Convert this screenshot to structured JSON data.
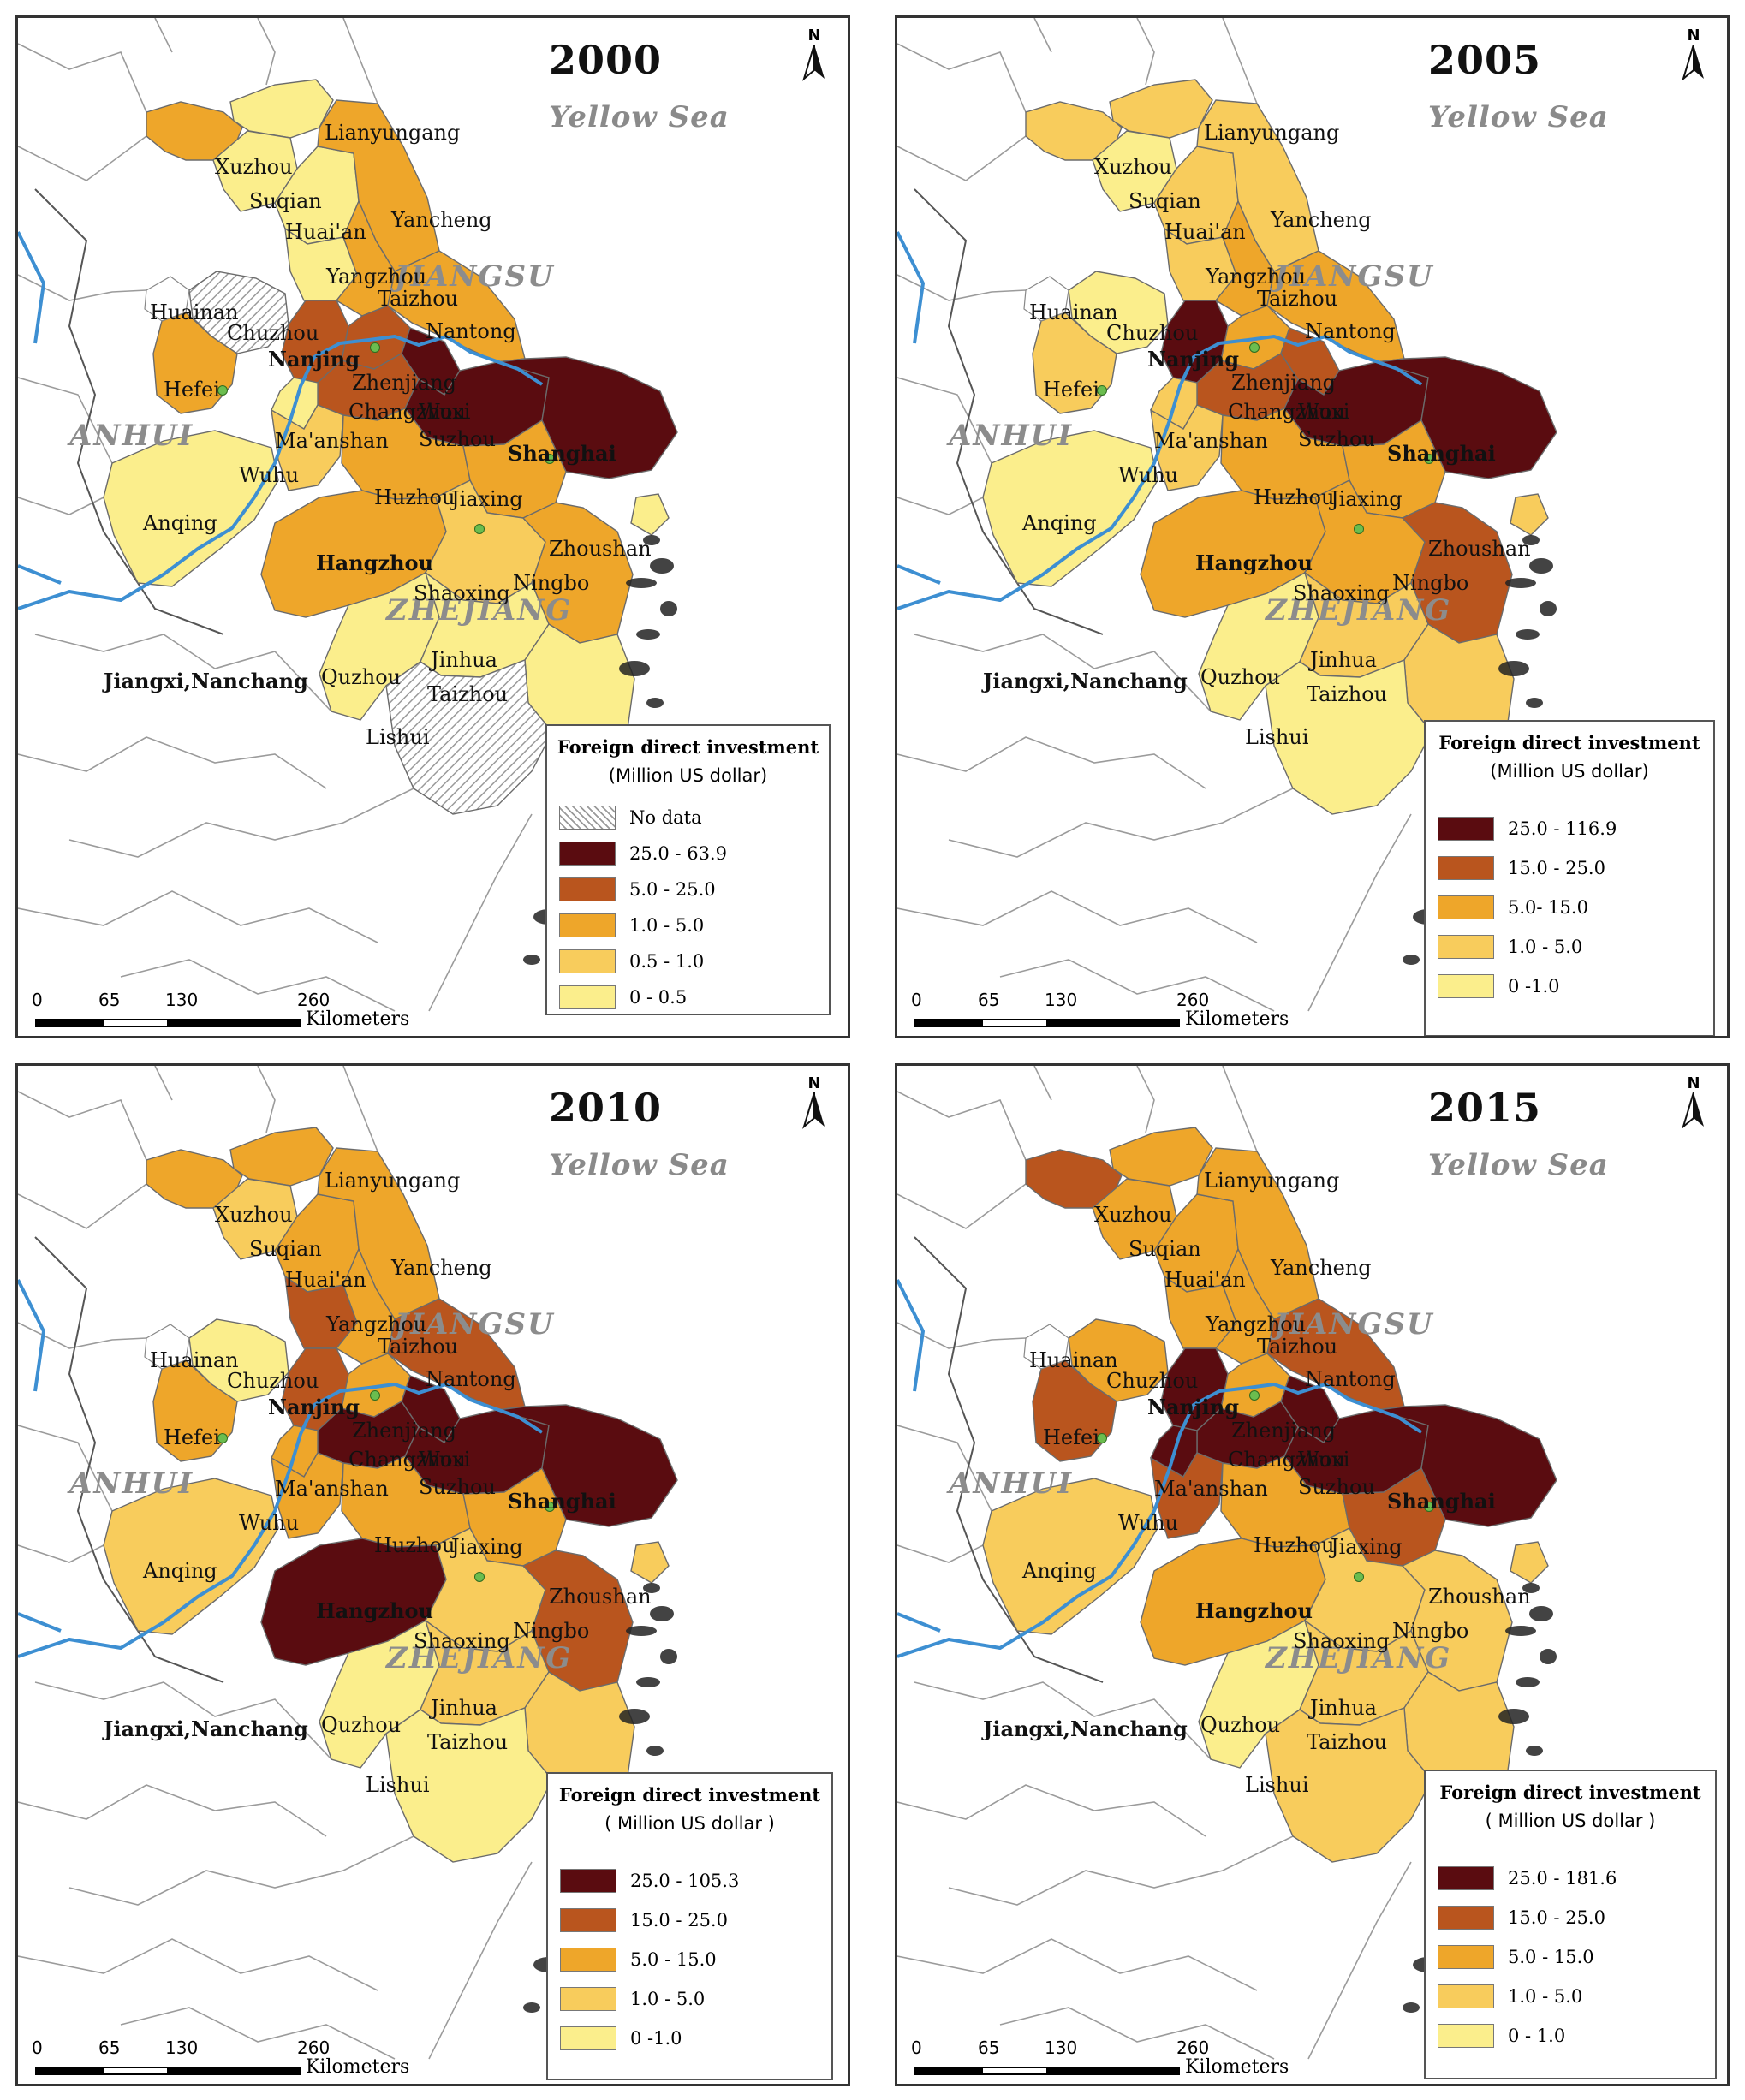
{
  "map_common": {
    "sea_label": "Yellow Sea",
    "north_label": "N",
    "provinces": [
      "JIANGSU",
      "ANHUI",
      "ZHEJIANG"
    ],
    "scale_ticks": [
      "0",
      "65",
      "130",
      "260"
    ],
    "scale_unit": "Kilometers",
    "cities": [
      "Xuzhou",
      "Lianyungang",
      "Suqian",
      "Huai'an",
      "Yancheng",
      "Yangzhou",
      "Taizhou",
      "Nantong",
      "Huainan",
      "Chuzhou",
      "Nanjing",
      "Hefei",
      "Zhenjiang",
      "Changzhou",
      "Wuxi",
      "Suzhou",
      "Shanghai",
      "Ma'anshan",
      "Wuhu",
      "Anqing",
      "Huzhou",
      "Jiaxing",
      "Hangzhou",
      "Zhoushan",
      "Ningbo",
      "Shaoxing",
      "Jiangxi,Nanchang",
      "Quzhou",
      "Jinhua",
      "Taizhou",
      "Lishui"
    ],
    "colors": {
      "c1": "#fbee8c",
      "c2": "#f8cc5c",
      "c3": "#eea62a",
      "c4": "#b9551e",
      "c5": "#5a0c10",
      "river": "#3d8fd2",
      "nodata": "hatched-gray"
    }
  },
  "panels": [
    {
      "year": "2000",
      "legend": {
        "title": "Foreign direct investment",
        "unit": "(Million US dollar)",
        "classes": [
          {
            "label": "No data",
            "color": "hatched-gray"
          },
          {
            "label": "25.0 - 63.9",
            "color": "#5a0c10"
          },
          {
            "label": "5.0 - 25.0",
            "color": "#b9551e"
          },
          {
            "label": "1.0 - 5.0",
            "color": "#eea62a"
          },
          {
            "label": "0.5 - 1.0",
            "color": "#f8cc5c"
          },
          {
            "label": "0 - 0.5",
            "color": "#fbee8c"
          }
        ]
      }
    },
    {
      "year": "2005",
      "legend": {
        "title": "Foreign direct investment",
        "unit": "(Million US dollar)",
        "classes": [
          {
            "label": "25.0 - 116.9",
            "color": "#5a0c10"
          },
          {
            "label": "15.0 - 25.0",
            "color": "#b9551e"
          },
          {
            "label": "5.0- 15.0",
            "color": "#eea62a"
          },
          {
            "label": "1.0 - 5.0",
            "color": "#f8cc5c"
          },
          {
            "label": "0 -1.0",
            "color": "#fbee8c"
          }
        ]
      }
    },
    {
      "year": "2010",
      "legend": {
        "title": "Foreign direct investment",
        "unit": "( Million US dollar )",
        "classes": [
          {
            "label": "25.0 - 105.3",
            "color": "#5a0c10"
          },
          {
            "label": "15.0 - 25.0",
            "color": "#b9551e"
          },
          {
            "label": "5.0 - 15.0",
            "color": "#eea62a"
          },
          {
            "label": "1.0 - 5.0",
            "color": "#f8cc5c"
          },
          {
            "label": "0 -1.0",
            "color": "#fbee8c"
          }
        ]
      }
    },
    {
      "year": "2015",
      "legend": {
        "title": "Foreign direct investment",
        "unit": "( Million US dollar )",
        "classes": [
          {
            "label": "25.0 - 181.6",
            "color": "#5a0c10"
          },
          {
            "label": "15.0 - 25.0",
            "color": "#b9551e"
          },
          {
            "label": "5.0 - 15.0",
            "color": "#eea62a"
          },
          {
            "label": "1.0 - 5.0",
            "color": "#f8cc5c"
          },
          {
            "label": "0 - 1.0",
            "color": "#fbee8c"
          }
        ]
      }
    }
  ],
  "city_classes": {
    "2000": {
      "Xuzhou": "c3",
      "Lianyungang": "c1",
      "Suqian": "c1",
      "Huaian": "c1",
      "Yancheng": "c3",
      "Yangzhou": "c1",
      "Taizhou_js": "c3",
      "Nantong": "c3",
      "Hefei": "c3",
      "Chuzhou": "nodata",
      "Nanjing": "c4",
      "Zhenjiang": "c4",
      "Changzhou": "c4",
      "Wuxi": "c5",
      "Suzhou": "c5",
      "Shanghai": "c5",
      "Maanshan": "c1",
      "Wuhu": "c2",
      "Anqing": "c1",
      "Huzhou": "c3",
      "Jiaxing": "c3",
      "Hangzhou": "c3",
      "Ningbo": "c3",
      "Shaoxing": "c2",
      "Quzhou": "c1",
      "Jinhua": "c1",
      "Taizhou_zj": "c1",
      "Lishui": "nodata",
      "Zhoushan": "c1"
    },
    "2005": {
      "Xuzhou": "c2",
      "Lianyungang": "c2",
      "Suqian": "c1",
      "Huaian": "c2",
      "Yancheng": "c2",
      "Yangzhou": "c2",
      "Taizhou_js": "c3",
      "Nantong": "c3",
      "Hefei": "c2",
      "Chuzhou": "c1",
      "Nanjing": "c5",
      "Zhenjiang": "c3",
      "Changzhou": "c4",
      "Wuxi": "c4",
      "Suzhou": "c5",
      "Shanghai": "c5",
      "Maanshan": "c2",
      "Wuhu": "c2",
      "Anqing": "c1",
      "Huzhou": "c3",
      "Jiaxing": "c3",
      "Hangzhou": "c3",
      "Ningbo": "c4",
      "Shaoxing": "c3",
      "Quzhou": "c1",
      "Jinhua": "c2",
      "Taizhou_zj": "c2",
      "Lishui": "c1",
      "Zhoushan": "c2"
    },
    "2010": {
      "Xuzhou": "c3",
      "Lianyungang": "c3",
      "Suqian": "c2",
      "Huaian": "c3",
      "Yancheng": "c3",
      "Yangzhou": "c4",
      "Taizhou_js": "c3",
      "Nantong": "c4",
      "Hefei": "c3",
      "Chuzhou": "c1",
      "Nanjing": "c4",
      "Zhenjiang": "c3",
      "Changzhou": "c5",
      "Wuxi": "c5",
      "Suzhou": "c5",
      "Shanghai": "c5",
      "Maanshan": "c3",
      "Wuhu": "c3",
      "Anqing": "c2",
      "Huzhou": "c3",
      "Jiaxing": "c3",
      "Hangzhou": "c5",
      "Ningbo": "c4",
      "Shaoxing": "c2",
      "Quzhou": "c1",
      "Jinhua": "c2",
      "Taizhou_zj": "c2",
      "Lishui": "c1",
      "Zhoushan": "c2"
    },
    "2015": {
      "Xuzhou": "c4",
      "Lianyungang": "c3",
      "Suqian": "c3",
      "Huaian": "c3",
      "Yancheng": "c3",
      "Yangzhou": "c3",
      "Taizhou_js": "c3",
      "Nantong": "c4",
      "Hefei": "c4",
      "Chuzhou": "c3",
      "Nanjing": "c5",
      "Zhenjiang": "c3",
      "Changzhou": "c5",
      "Wuxi": "c5",
      "Suzhou": "c5",
      "Shanghai": "c5",
      "Maanshan": "c5",
      "Wuhu": "c4",
      "Anqing": "c2",
      "Huzhou": "c3",
      "Jiaxing": "c4",
      "Hangzhou": "c3",
      "Ningbo": "c2",
      "Shaoxing": "c2",
      "Quzhou": "c1",
      "Jinhua": "c2",
      "Taizhou_zj": "c2",
      "Lishui": "c2",
      "Zhoushan": "c2"
    }
  }
}
